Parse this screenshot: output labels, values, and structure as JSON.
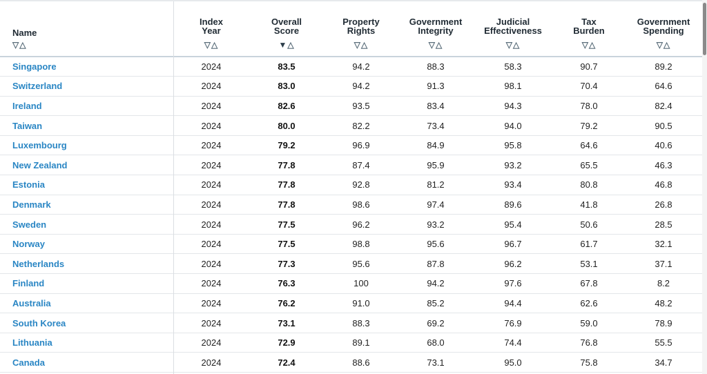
{
  "columns": [
    {
      "key": "name",
      "label_lines": [
        "Name"
      ],
      "sort": {
        "down": "▽",
        "up": "△"
      }
    },
    {
      "key": "year",
      "label_lines": [
        "Index",
        "Year"
      ],
      "sort": {
        "down": "▽",
        "up": "△"
      }
    },
    {
      "key": "score",
      "label_lines": [
        "Overall",
        "Score"
      ],
      "sort": {
        "down": "▼",
        "up": "△"
      }
    },
    {
      "key": "property",
      "label_lines": [
        "Property",
        "Rights"
      ],
      "sort": {
        "down": "▽",
        "up": "△"
      }
    },
    {
      "key": "integrity",
      "label_lines": [
        "Government",
        "Integrity"
      ],
      "sort": {
        "down": "▽",
        "up": "△"
      }
    },
    {
      "key": "judicial",
      "label_lines": [
        "Judicial",
        "Effectiveness"
      ],
      "sort": {
        "down": "▽",
        "up": "△"
      }
    },
    {
      "key": "tax",
      "label_lines": [
        "Tax",
        "Burden"
      ],
      "sort": {
        "down": "▽",
        "up": "△"
      }
    },
    {
      "key": "spending",
      "label_lines": [
        "Government",
        "Spending"
      ],
      "sort": {
        "down": "▽",
        "up": "△"
      }
    }
  ],
  "active_sort": {
    "column": "score",
    "direction": "descending"
  },
  "rows": [
    {
      "name": "Singapore",
      "year": "2024",
      "score": "83.5",
      "property": "94.2",
      "integrity": "88.3",
      "judicial": "58.3",
      "tax": "90.7",
      "spending": "89.2"
    },
    {
      "name": "Switzerland",
      "year": "2024",
      "score": "83.0",
      "property": "94.2",
      "integrity": "91.3",
      "judicial": "98.1",
      "tax": "70.4",
      "spending": "64.6"
    },
    {
      "name": "Ireland",
      "year": "2024",
      "score": "82.6",
      "property": "93.5",
      "integrity": "83.4",
      "judicial": "94.3",
      "tax": "78.0",
      "spending": "82.4"
    },
    {
      "name": "Taiwan",
      "year": "2024",
      "score": "80.0",
      "property": "82.2",
      "integrity": "73.4",
      "judicial": "94.0",
      "tax": "79.2",
      "spending": "90.5"
    },
    {
      "name": "Luxembourg",
      "year": "2024",
      "score": "79.2",
      "property": "96.9",
      "integrity": "84.9",
      "judicial": "95.8",
      "tax": "64.6",
      "spending": "40.6"
    },
    {
      "name": "New Zealand",
      "year": "2024",
      "score": "77.8",
      "property": "87.4",
      "integrity": "95.9",
      "judicial": "93.2",
      "tax": "65.5",
      "spending": "46.3"
    },
    {
      "name": "Estonia",
      "year": "2024",
      "score": "77.8",
      "property": "92.8",
      "integrity": "81.2",
      "judicial": "93.4",
      "tax": "80.8",
      "spending": "46.8"
    },
    {
      "name": "Denmark",
      "year": "2024",
      "score": "77.8",
      "property": "98.6",
      "integrity": "97.4",
      "judicial": "89.6",
      "tax": "41.8",
      "spending": "26.8"
    },
    {
      "name": "Sweden",
      "year": "2024",
      "score": "77.5",
      "property": "96.2",
      "integrity": "93.2",
      "judicial": "95.4",
      "tax": "50.6",
      "spending": "28.5"
    },
    {
      "name": "Norway",
      "year": "2024",
      "score": "77.5",
      "property": "98.8",
      "integrity": "95.6",
      "judicial": "96.7",
      "tax": "61.7",
      "spending": "32.1"
    },
    {
      "name": "Netherlands",
      "year": "2024",
      "score": "77.3",
      "property": "95.6",
      "integrity": "87.8",
      "judicial": "96.2",
      "tax": "53.1",
      "spending": "37.1"
    },
    {
      "name": "Finland",
      "year": "2024",
      "score": "76.3",
      "property": "100",
      "integrity": "94.2",
      "judicial": "97.6",
      "tax": "67.8",
      "spending": "8.2"
    },
    {
      "name": "Australia",
      "year": "2024",
      "score": "76.2",
      "property": "91.0",
      "integrity": "85.2",
      "judicial": "94.4",
      "tax": "62.6",
      "spending": "48.2"
    },
    {
      "name": "South Korea",
      "year": "2024",
      "score": "73.1",
      "property": "88.3",
      "integrity": "69.2",
      "judicial": "76.9",
      "tax": "59.0",
      "spending": "78.9"
    },
    {
      "name": "Lithuania",
      "year": "2024",
      "score": "72.9",
      "property": "89.1",
      "integrity": "68.0",
      "judicial": "74.4",
      "tax": "76.8",
      "spending": "55.5"
    },
    {
      "name": "Canada",
      "year": "2024",
      "score": "72.4",
      "property": "88.6",
      "integrity": "73.1",
      "judicial": "95.0",
      "tax": "75.8",
      "spending": "34.7"
    }
  ],
  "colors": {
    "link": "#2a86c4",
    "header_text": "#1f2a33",
    "row_border": "#e3e6e9",
    "sort_icon": "#5a6d7a"
  }
}
